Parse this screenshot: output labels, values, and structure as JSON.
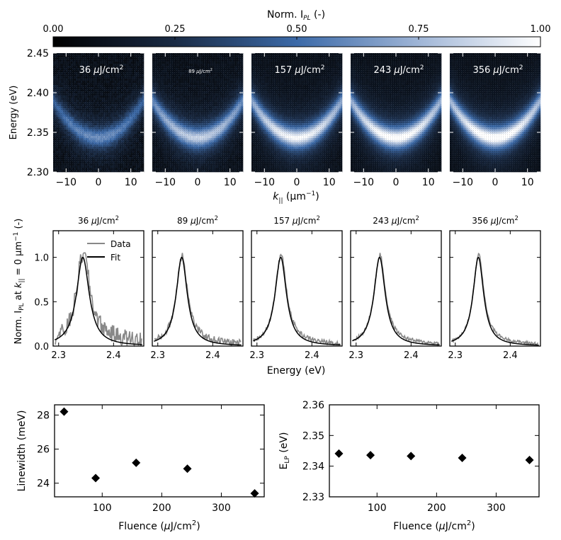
{
  "colorbar": {
    "label": "Norm. I",
    "label_sub": "PL",
    "label_suffix": " (-)",
    "ticks": [
      "0.00",
      "0.25",
      "0.50",
      "0.75",
      "1.00"
    ],
    "range": [
      0,
      1
    ],
    "stops": [
      "#000000",
      "#1a2b45",
      "#3c6aa8",
      "#9fb5d6",
      "#ffffff"
    ]
  },
  "chart_data": [
    {
      "type": "heatmap",
      "id": "dispersion-maps",
      "ylabel": "Energy (eV)",
      "xlabel_prefix": "k",
      "xlabel_sub": "||",
      "xlabel_suffix": " (μm",
      "xlabel_sup": "−1",
      "xlabel_close": ")",
      "xlim": [
        -14,
        14
      ],
      "ylim": [
        2.3,
        2.45
      ],
      "xticks": [
        -10,
        0,
        10
      ],
      "yticks": [
        "2.30",
        "2.35",
        "2.40",
        "2.45"
      ],
      "panels": [
        {
          "title": "36 μJ/cm²",
          "title_small": false,
          "peak": 0.55
        },
        {
          "title": "89 μJ/cm²",
          "title_small": true,
          "peak": 0.78
        },
        {
          "title": "157 μJ/cm²",
          "title_small": false,
          "peak": 0.92
        },
        {
          "title": "243 μJ/cm²",
          "title_small": false,
          "peak": 0.97
        },
        {
          "title": "356 μJ/cm²",
          "title_small": false,
          "peak": 1.0
        }
      ],
      "dispersion": {
        "e0": 2.343,
        "curvature_eV_per_um2": 0.00024
      }
    },
    {
      "type": "line",
      "id": "k0-spectra",
      "ylabel_prefix": "Norm. I",
      "ylabel_sub": "PL",
      "ylabel_mid": " at k",
      "ylabel_sub2": "||",
      "ylabel_suffix": " = 0 μm",
      "ylabel_sup": "−1",
      "ylabel_close": " (-)",
      "xlabel": "Energy (eV)",
      "xlim": [
        2.29,
        2.455
      ],
      "ylim": [
        0,
        1.3
      ],
      "xticks": [
        "2.3",
        "2.4"
      ],
      "yticks": [
        "0.0",
        "0.5",
        "1.0"
      ],
      "legend": [
        "Data",
        "Fit"
      ],
      "series_colors": {
        "data": "#888888",
        "fit": "#000000"
      },
      "panels": [
        {
          "title": "36 μJ/cm²",
          "center": 2.3441,
          "linewidth_meV": 28.2,
          "noise": 0.09
        },
        {
          "title": "89 μJ/cm²",
          "center": 2.3436,
          "linewidth_meV": 24.3,
          "noise": 0.035
        },
        {
          "title": "157 μJ/cm²",
          "center": 2.3433,
          "linewidth_meV": 25.2,
          "noise": 0.022
        },
        {
          "title": "243 μJ/cm²",
          "center": 2.3427,
          "linewidth_meV": 24.9,
          "noise": 0.018
        },
        {
          "title": "356 μJ/cm²",
          "center": 2.342,
          "linewidth_meV": 23.4,
          "noise": 0.015
        }
      ]
    },
    {
      "type": "scatter",
      "id": "linewidth-vs-fluence",
      "xlabel": "Fluence (μJ/cm²)",
      "ylabel": "Linewidth (meV)",
      "xlim": [
        20,
        372
      ],
      "ylim": [
        23.2,
        28.6
      ],
      "xticks": [
        100,
        200,
        300
      ],
      "yticks": [
        24,
        26,
        28
      ],
      "x": [
        36,
        89,
        157,
        243,
        356
      ],
      "y": [
        28.2,
        24.3,
        25.2,
        24.85,
        23.4
      ]
    },
    {
      "type": "scatter",
      "id": "elp-vs-fluence",
      "xlabel": "Fluence (μJ/cm²)",
      "ylabel_prefix": "E",
      "ylabel_sub": "LP",
      "ylabel_suffix": " (eV)",
      "xlim": [
        20,
        372
      ],
      "ylim": [
        2.33,
        2.36
      ],
      "xticks": [
        100,
        200,
        300
      ],
      "yticks": [
        "2.33",
        "2.34",
        "2.35",
        "2.36"
      ],
      "x": [
        36,
        89,
        157,
        243,
        356
      ],
      "y": [
        2.3441,
        2.3436,
        2.3433,
        2.3427,
        2.342
      ]
    }
  ]
}
